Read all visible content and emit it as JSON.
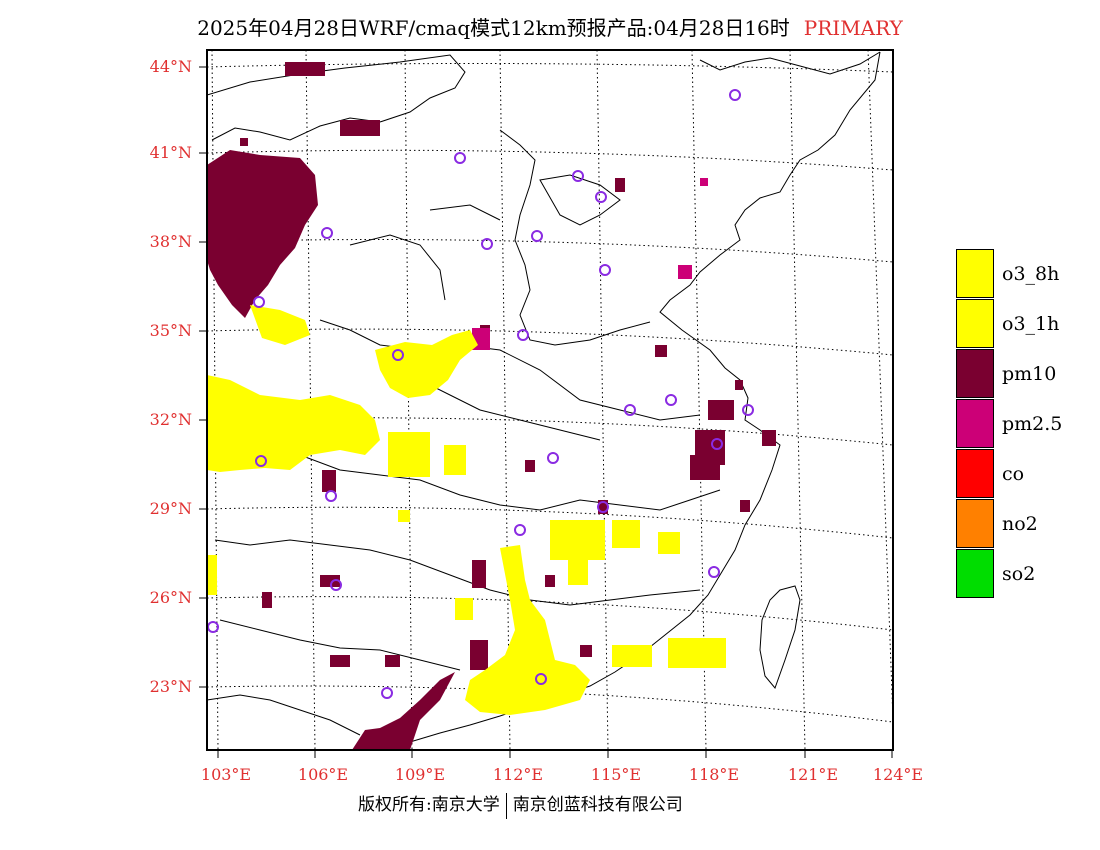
{
  "header": {
    "title": "2025年04月28日WRF/cmaq模式12km预报产品:04月28日16时",
    "tag": "PRIMARY"
  },
  "axes": {
    "lat_labels": [
      "44°N",
      "41°N",
      "38°N",
      "35°N",
      "32°N",
      "29°N",
      "26°N",
      "23°N"
    ],
    "lon_labels": [
      "103°E",
      "106°E",
      "109°E",
      "112°E",
      "115°E",
      "118°E",
      "121°E",
      "124°E"
    ]
  },
  "legend": [
    {
      "label": "o3_8h",
      "color": "#ffff00"
    },
    {
      "label": "o3_1h",
      "color": "#ffff00"
    },
    {
      "label": "pm10",
      "color": "#7a0030"
    },
    {
      "label": "pm2.5",
      "color": "#cc0077"
    },
    {
      "label": "co",
      "color": "#ff0000"
    },
    {
      "label": "no2",
      "color": "#ff8000"
    },
    {
      "label": "so2",
      "color": "#00dd00"
    }
  ],
  "colors": {
    "axis_label": "#e03030",
    "station_marker": "#8a2be2",
    "pm10": "#7a0030",
    "pm25": "#cc0077",
    "o3": "#ffff00"
  },
  "footer": {
    "left": "版权所有:南京大学",
    "right": "南京创蓝科技有限公司"
  }
}
